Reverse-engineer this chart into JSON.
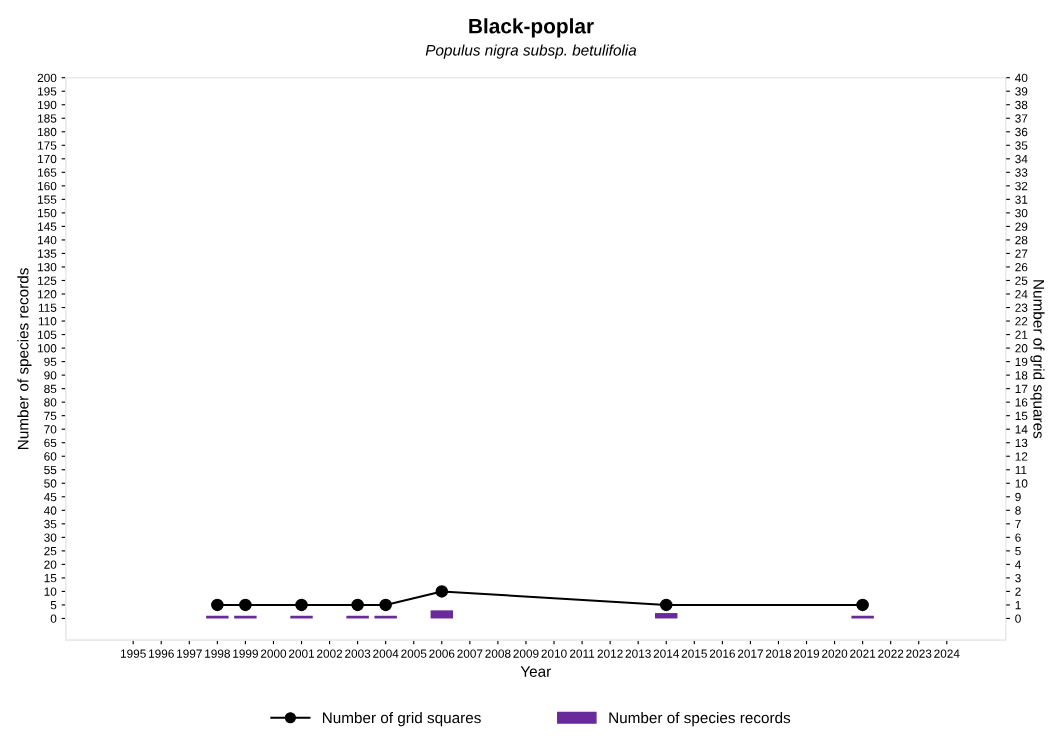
{
  "chart_data": {
    "type": "bar",
    "title": "Black-poplar",
    "subtitle": "Populus nigra subsp. betulifolia",
    "xlabel": "Year",
    "ylabel": "Number of species records",
    "y2label": "Number of grid squares",
    "x": [
      1998,
      1999,
      2001,
      2003,
      2004,
      2006,
      2014,
      2021
    ],
    "series": [
      {
        "name": "Number of grid squares",
        "type": "line",
        "axis": "y2",
        "color": "#000000",
        "marker": "circle",
        "values": [
          1,
          1,
          1,
          1,
          1,
          2,
          1,
          1
        ]
      },
      {
        "name": "Number of species records",
        "type": "bar",
        "color": "#6a2a9c",
        "values": [
          1,
          1,
          1,
          1,
          1,
          3,
          2,
          1
        ]
      }
    ],
    "xlim": [
      1992.6,
      2026.1
    ],
    "xticks": [
      1995,
      1996,
      1997,
      1998,
      1999,
      2000,
      2001,
      2002,
      2003,
      2004,
      2005,
      2006,
      2007,
      2008,
      2009,
      2010,
      2011,
      2012,
      2013,
      2014,
      2015,
      2016,
      2017,
      2018,
      2019,
      2020,
      2021,
      2022,
      2023,
      2024
    ],
    "ylim": [
      -8,
      200
    ],
    "yticks": [
      0,
      5,
      10,
      15,
      20,
      25,
      30,
      35,
      40,
      45,
      50,
      55,
      60,
      65,
      70,
      75,
      80,
      85,
      90,
      95,
      100,
      105,
      110,
      115,
      120,
      125,
      130,
      135,
      140,
      145,
      150,
      155,
      160,
      165,
      170,
      175,
      180,
      185,
      190,
      195,
      200
    ],
    "y2lim": [
      -1.6,
      40
    ],
    "y2ticks": [
      0,
      1,
      2,
      3,
      4,
      5,
      6,
      7,
      8,
      9,
      10,
      11,
      12,
      13,
      14,
      15,
      16,
      17,
      18,
      19,
      20,
      21,
      22,
      23,
      24,
      25,
      26,
      27,
      28,
      29,
      30,
      31,
      32,
      33,
      34,
      35,
      36,
      37,
      38,
      39,
      40
    ],
    "grid": false,
    "legend": "bottom"
  }
}
